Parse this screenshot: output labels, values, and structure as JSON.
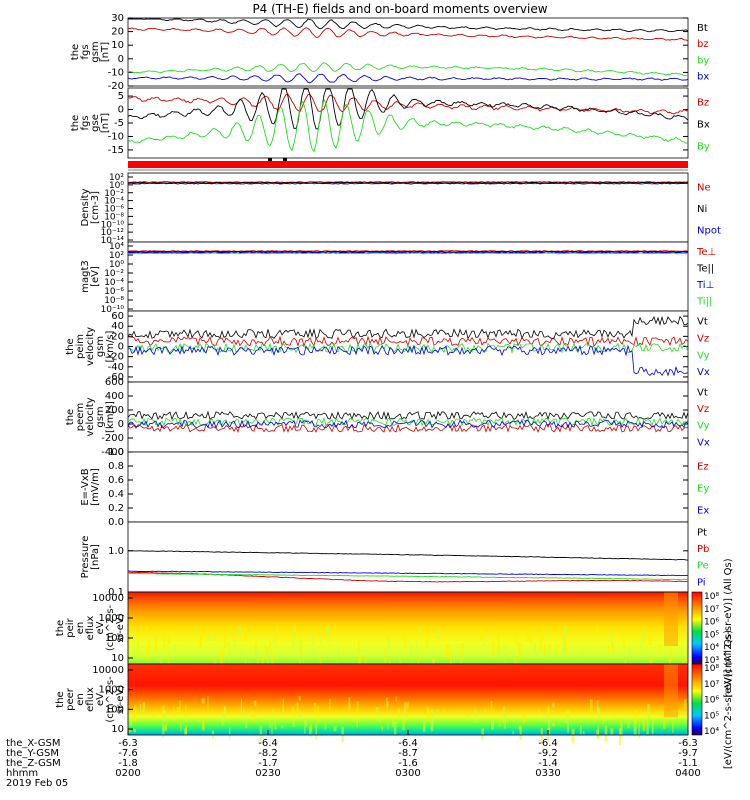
{
  "title": "P4 (TH-E) fields and on-board moments overview",
  "colors": {
    "black": "#000000",
    "red": "#d00000",
    "green": "#22dd22",
    "blue": "#0000dd"
  },
  "chart_data": [
    {
      "type": "line",
      "id": "fgs-gsm",
      "ylabel": [
        "the",
        "fgs",
        "gsm",
        "[nT]"
      ],
      "ylim": [
        -20,
        30
      ],
      "ticks": [
        30,
        20,
        10,
        0,
        -10,
        -20
      ],
      "series": [
        {
          "name": "Bt",
          "color": "black",
          "start": 30,
          "end": 23
        },
        {
          "name": "bz",
          "color": "red",
          "start": 22,
          "end": 14
        },
        {
          "name": "by",
          "color": "green",
          "start": -10,
          "end": -12
        },
        {
          "name": "bx",
          "color": "blue",
          "start": -14,
          "end": -15
        }
      ]
    },
    {
      "type": "line",
      "id": "fgs-gse",
      "ylabel": [
        "the",
        "fgs",
        "gse",
        "[nT]"
      ],
      "ylim": [
        -18,
        8
      ],
      "ticks": [
        5,
        0,
        -5,
        -10,
        -15
      ],
      "series": [
        {
          "name": "Bz",
          "color": "red",
          "start": 4,
          "end": -1
        },
        {
          "name": "Bx",
          "color": "black",
          "start": -3,
          "end": -4
        },
        {
          "name": "By",
          "color": "green",
          "start": -12,
          "end": -12
        }
      ]
    },
    {
      "type": "line",
      "id": "density",
      "ylabel": [
        "Density",
        "[cm-3]"
      ],
      "tick_labels": [
        "10²",
        "10⁰",
        "10⁻²",
        "10⁻⁴",
        "10⁻⁶",
        "10⁻⁸",
        "10⁻¹⁰",
        "10⁻¹²",
        "10⁻¹⁴"
      ],
      "series": [
        {
          "name": "Ne",
          "color": "red"
        },
        {
          "name": "Ni",
          "color": "black"
        },
        {
          "name": "Npot",
          "color": "blue"
        }
      ]
    },
    {
      "type": "line",
      "id": "temperature",
      "ylabel": [
        "magt3",
        "[eV]"
      ],
      "tick_labels": [
        "10⁴",
        "10²",
        "10⁰",
        "10⁻²",
        "10⁻⁴",
        "10⁻⁶",
        "10⁻⁸",
        "10⁻¹⁰"
      ],
      "series": [
        {
          "name": "Te⊥",
          "color": "red"
        },
        {
          "name": "Te||",
          "color": "black"
        },
        {
          "name": "Ti⊥",
          "color": "blue"
        },
        {
          "name": "Ti||",
          "color": "green"
        }
      ]
    },
    {
      "type": "line",
      "id": "peim-velocity",
      "ylabel": [
        "the",
        "peim",
        "velocity",
        "gsm",
        "[km/s]"
      ],
      "ylim": [
        -70,
        70
      ],
      "ticks": [
        60,
        40,
        20,
        0,
        -20,
        -40,
        -60
      ],
      "series": [
        {
          "name": "Vt",
          "color": "black"
        },
        {
          "name": "Vz",
          "color": "red"
        },
        {
          "name": "Vy",
          "color": "green"
        },
        {
          "name": "Vx",
          "color": "blue"
        }
      ]
    },
    {
      "type": "line",
      "id": "peem-velocity",
      "ylabel": [
        "the",
        "peem",
        "velocity",
        "gsm",
        "[km/s]"
      ],
      "ylim": [
        -400,
        600
      ],
      "ticks": [
        600,
        400,
        200,
        0,
        -200,
        -400
      ],
      "series": [
        {
          "name": "Vt",
          "color": "black"
        },
        {
          "name": "Vz",
          "color": "red"
        },
        {
          "name": "Vy",
          "color": "green"
        },
        {
          "name": "Vx",
          "color": "blue"
        }
      ]
    },
    {
      "type": "line",
      "id": "efield",
      "ylabel": [
        "E=-VxB",
        "[mV/m]"
      ],
      "ylim": [
        0,
        1
      ],
      "ticks": [
        "1.0",
        "0.8",
        "0.6",
        "0.4",
        "0.2",
        "0.0"
      ],
      "series": [
        {
          "name": "Ez",
          "color": "red"
        },
        {
          "name": "Ey",
          "color": "green"
        },
        {
          "name": "Ex",
          "color": "blue"
        }
      ]
    },
    {
      "type": "line",
      "id": "pressure",
      "ylabel": [
        "Pressure",
        "[nPa]"
      ],
      "ylim": [
        0.1,
        5
      ],
      "ticks": [
        "1.0",
        "0.1"
      ],
      "series": [
        {
          "name": "Pt",
          "color": "black",
          "start": 1.0,
          "end": 0.6
        },
        {
          "name": "Pb",
          "color": "red",
          "start": 0.3,
          "end": 0.18
        },
        {
          "name": "Pe",
          "color": "green",
          "start": 0.28,
          "end": 0.2
        },
        {
          "name": "Pi",
          "color": "blue",
          "start": 0.32,
          "end": 0.25
        }
      ]
    },
    {
      "type": "heatmap",
      "id": "peir-eflux",
      "ylabel": [
        "the",
        "peir",
        "en",
        "eflux",
        "eV",
        "(cm^2-s-",
        "sr-eV)"
      ],
      "ylim": [
        5,
        20000
      ],
      "ticks": [
        "10000",
        "1000",
        "100",
        "10"
      ],
      "colorbar": {
        "ticks": [
          "10⁸",
          "10⁷",
          "10⁶",
          "10⁵",
          "10⁴",
          "10³"
        ],
        "label": "[eV/(cm^2-s-sr-eV)] (All Qs)"
      }
    },
    {
      "type": "heatmap",
      "id": "peer-eflux",
      "ylabel": [
        "the",
        "peer",
        "en",
        "eflux",
        "eV",
        "(cm^2-s-",
        "sr-eV)"
      ],
      "ylim": [
        5,
        20000
      ],
      "ticks": [
        "10000",
        "1000",
        "100",
        "10"
      ],
      "colorbar": {
        "ticks": [
          "10⁸",
          "10⁷",
          "10⁶",
          "10⁵",
          "10⁴"
        ],
        "label": "[eV/(cm^2-s-sr-eV)] (All Qs)"
      }
    }
  ],
  "x_axis": {
    "rows": [
      {
        "label": "the_X-GSM",
        "values": [
          "-6.3",
          "-6.4",
          "-6.4",
          "-6.4",
          "-6.3"
        ]
      },
      {
        "label": "the_Y-GSM",
        "values": [
          "-7.6",
          "-8.2",
          "-8.7",
          "-9.2",
          "-9.7"
        ]
      },
      {
        "label": "the_Z-GSM",
        "values": [
          "-1.8",
          "-1.7",
          "-1.6",
          "-1.4",
          "-1.1"
        ]
      },
      {
        "label": "hhmm",
        "values": [
          "0200",
          "0230",
          "0300",
          "0330",
          "0400"
        ]
      }
    ],
    "date": "2019 Feb 05"
  }
}
